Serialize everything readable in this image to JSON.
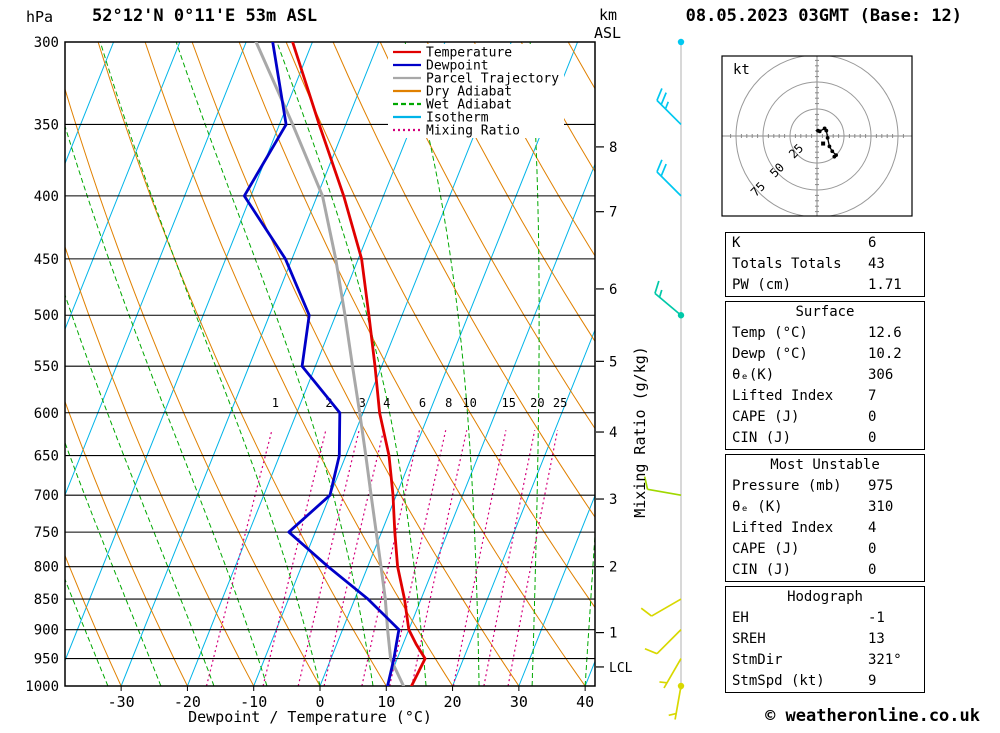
{
  "header": {
    "pressure_unit": "hPa",
    "title": "52°12'N 0°11'E 53m ASL",
    "date": "08.05.2023 03GMT (Base: 12)",
    "km_label": "km",
    "asl_label": "ASL"
  },
  "axes": {
    "x_label": "Dewpoint / Temperature (°C)",
    "mixing_ratio_label": "Mixing Ratio (g/kg)",
    "pressure_ticks": [
      300,
      350,
      400,
      450,
      500,
      550,
      600,
      650,
      700,
      750,
      800,
      850,
      900,
      950,
      1000
    ],
    "temp_ticks": [
      -30,
      -20,
      -10,
      0,
      10,
      20,
      30,
      40
    ],
    "km_ticks": [
      {
        "km": "8",
        "p": 365
      },
      {
        "km": "7",
        "p": 412
      },
      {
        "km": "6",
        "p": 476
      },
      {
        "km": "5",
        "p": 545
      },
      {
        "km": "4",
        "p": 622
      },
      {
        "km": "3",
        "p": 705
      },
      {
        "km": "2",
        "p": 800
      },
      {
        "km": "1",
        "p": 905
      }
    ],
    "lcl": {
      "label": "LCL",
      "p": 965
    }
  },
  "legend": [
    {
      "label": "Temperature",
      "color": "#e00000",
      "dash": ""
    },
    {
      "label": "Dewpoint",
      "color": "#0000c8",
      "dash": ""
    },
    {
      "label": "Parcel Trajectory",
      "color": "#a8a8a8",
      "dash": ""
    },
    {
      "label": "Dry Adiabat",
      "color": "#e08000",
      "dash": ""
    },
    {
      "label": "Wet Adiabat",
      "color": "#00a800",
      "dash": "5,3"
    },
    {
      "label": "Isotherm",
      "color": "#00b4e8",
      "dash": ""
    },
    {
      "label": "Mixing Ratio",
      "color": "#d4007c",
      "dash": "2,3"
    }
  ],
  "chart_data": {
    "type": "skewt-log-p",
    "pressure_range_hPa": [
      300,
      1000
    ],
    "temp_axis_ticks_C": [
      -30,
      -20,
      -10,
      0,
      10,
      20,
      30,
      40
    ],
    "sounding": {
      "pressure_hPa": [
        1000,
        950,
        925,
        900,
        850,
        800,
        750,
        700,
        650,
        600,
        550,
        500,
        450,
        400,
        350,
        300
      ],
      "temperature_C": [
        13.8,
        14.2,
        12.0,
        10.0,
        7.5,
        4.5,
        2.0,
        -0.5,
        -3.5,
        -7.5,
        -11.0,
        -15.0,
        -19.5,
        -26.0,
        -34.0,
        -43.0
      ],
      "dewpoint_C": [
        10.2,
        9.5,
        9.0,
        8.5,
        2.0,
        -6.0,
        -14.0,
        -10.0,
        -11.0,
        -13.5,
        -22.0,
        -24.0,
        -31.0,
        -41.0,
        -39.0,
        -46.0
      ]
    },
    "parcel_trajectory": {
      "pressure_hPa": [
        1000,
        950,
        900,
        850,
        800,
        750,
        700,
        650,
        600,
        550,
        500,
        450,
        400,
        350,
        300
      ],
      "temperature_C": [
        12.6,
        9.0,
        6.8,
        4.6,
        2.0,
        -0.8,
        -3.8,
        -7.0,
        -10.5,
        -14.4,
        -18.6,
        -23.4,
        -29.2,
        -38.0,
        -48.5
      ]
    },
    "winds": [
      {
        "p": 300,
        "speed_kt": 25,
        "dir_deg": 320,
        "color": "#00c8f0",
        "barb": false
      },
      {
        "p": 350,
        "speed_kt": 25,
        "dir_deg": 315,
        "color": "#00c8f0",
        "barb": true
      },
      {
        "p": 400,
        "speed_kt": 20,
        "dir_deg": 315,
        "color": "#00c8f0",
        "barb": true
      },
      {
        "p": 500,
        "speed_kt": 15,
        "dir_deg": 310,
        "color": "#00c8a8",
        "barb": true
      },
      {
        "p": 700,
        "speed_kt": 10,
        "dir_deg": 280,
        "color": "#a0d800",
        "barb": true
      },
      {
        "p": 850,
        "speed_kt": 10,
        "dir_deg": 240,
        "color": "#d8d800",
        "barb": true
      },
      {
        "p": 900,
        "speed_kt": 10,
        "dir_deg": 225,
        "color": "#d8d800",
        "barb": true
      },
      {
        "p": 950,
        "speed_kt": 5,
        "dir_deg": 210,
        "color": "#d8d800",
        "barb": true
      },
      {
        "p": 1000,
        "speed_kt": 5,
        "dir_deg": 190,
        "color": "#d8d800",
        "barb": true
      }
    ],
    "staff_dots": [
      {
        "p": 300,
        "color": "#00c8f0"
      },
      {
        "p": 500,
        "color": "#00c8a8"
      },
      {
        "p": 1000,
        "color": "#d8d800"
      }
    ],
    "mixing_ratio_lines_g_kg": [
      1,
      2,
      3,
      4,
      6,
      8,
      10,
      15,
      20,
      25
    ],
    "isotherm_step_C": 10,
    "dry_adiabat_theta_C": [
      -30,
      -20,
      -10,
      0,
      10,
      20,
      30,
      40,
      50,
      60,
      70,
      80,
      90,
      100,
      110,
      120,
      130,
      140,
      150,
      160
    ],
    "wet_adiabat_starts_C": [
      -48,
      -40,
      -32,
      -24,
      -16,
      -8,
      0,
      8,
      16,
      24,
      32,
      40
    ]
  },
  "hodograph": {
    "unit": "kt",
    "rings_kt": [
      25,
      50,
      75
    ],
    "ring_labels": [
      "25",
      "50",
      "75"
    ],
    "storm_dir_deg": 321,
    "storm_speed_kt": 9
  },
  "stats": {
    "groups": [
      {
        "header": "",
        "rows": [
          {
            "label": "K",
            "value": "6"
          },
          {
            "label": "Totals Totals",
            "value": "43"
          },
          {
            "label": "PW (cm)",
            "value": "1.71"
          }
        ]
      },
      {
        "header": "Surface",
        "rows": [
          {
            "label": "Temp (°C)",
            "value": "12.6"
          },
          {
            "label": "Dewp (°C)",
            "value": "10.2"
          },
          {
            "label": "θₑ(K)",
            "value": "306"
          },
          {
            "label": "Lifted Index",
            "value": "7"
          },
          {
            "label": "CAPE (J)",
            "value": "0"
          },
          {
            "label": "CIN (J)",
            "value": "0"
          }
        ]
      },
      {
        "header": "Most Unstable",
        "rows": [
          {
            "label": "Pressure (mb)",
            "value": "975"
          },
          {
            "label": "θₑ (K)",
            "value": "310"
          },
          {
            "label": "Lifted Index",
            "value": "4"
          },
          {
            "label": "CAPE (J)",
            "value": "0"
          },
          {
            "label": "CIN (J)",
            "value": "0"
          }
        ]
      },
      {
        "header": "Hodograph",
        "rows": [
          {
            "label": "EH",
            "value": "-1"
          },
          {
            "label": "SREH",
            "value": "13"
          },
          {
            "label": "StmDir",
            "value": "321°"
          },
          {
            "label": "StmSpd (kt)",
            "value": "9"
          }
        ]
      }
    ]
  },
  "footer": {
    "copyright": "© weatheronline.co.uk"
  }
}
